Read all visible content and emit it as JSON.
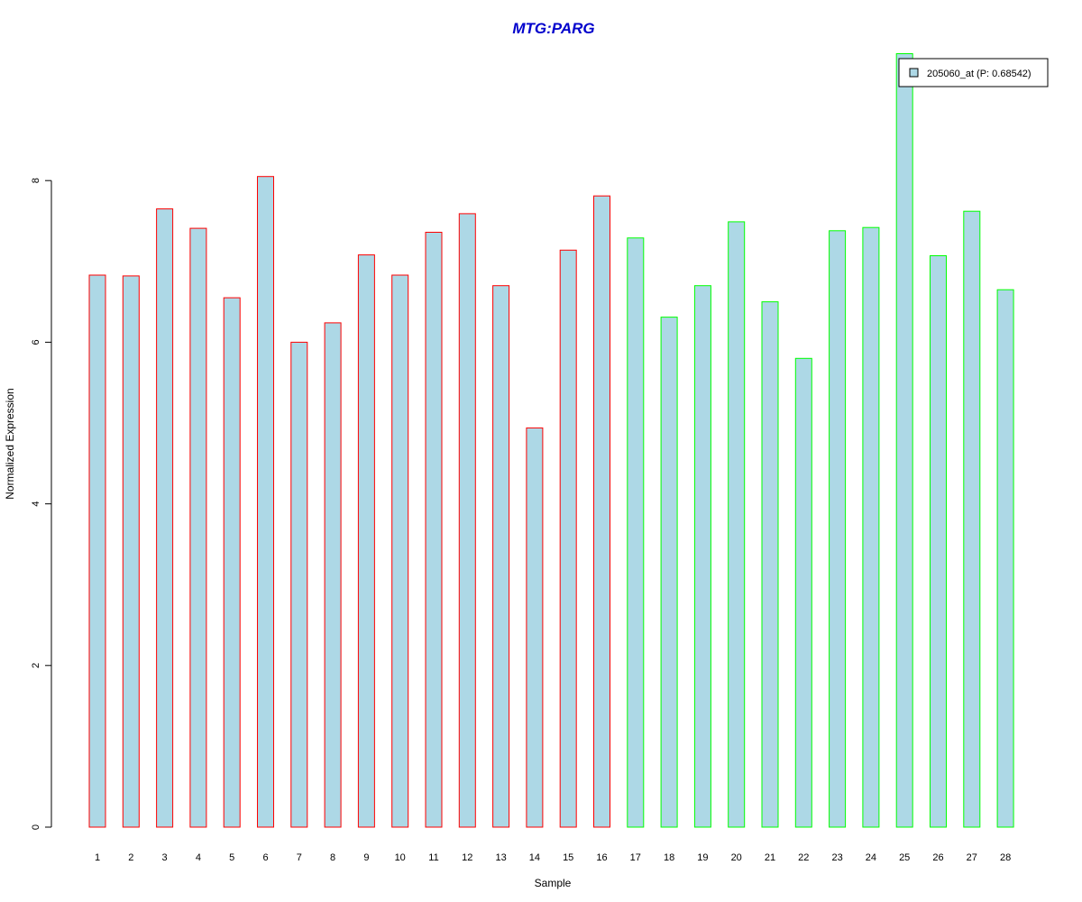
{
  "chart_data": {
    "type": "bar",
    "title": "MTG:PARG",
    "xlabel": "Sample",
    "ylabel": "Normalized Expression",
    "ylim": [
      0,
      9.6
    ],
    "y_ticks": [
      "0",
      "2",
      "4",
      "6",
      "8"
    ],
    "grid": false,
    "legend_position": "top-right",
    "categories": [
      "1",
      "2",
      "3",
      "4",
      "5",
      "6",
      "7",
      "8",
      "9",
      "10",
      "11",
      "12",
      "13",
      "14",
      "15",
      "16",
      "17",
      "18",
      "19",
      "20",
      "21",
      "22",
      "23",
      "24",
      "25",
      "26",
      "27",
      "28"
    ],
    "series": [
      {
        "name": "205060_at (P: 0.68542)",
        "values": [
          6.83,
          6.82,
          7.65,
          7.41,
          6.55,
          8.05,
          6.0,
          6.24,
          7.08,
          6.83,
          7.36,
          7.59,
          6.7,
          4.94,
          7.14,
          7.81,
          7.29,
          6.31,
          6.7,
          7.49,
          6.5,
          5.8,
          7.38,
          7.42,
          9.57,
          7.07,
          7.62,
          6.65
        ]
      }
    ],
    "groups": [
      "red",
      "red",
      "red",
      "red",
      "red",
      "red",
      "red",
      "red",
      "red",
      "red",
      "red",
      "red",
      "red",
      "red",
      "red",
      "red",
      "green",
      "green",
      "green",
      "green",
      "green",
      "green",
      "green",
      "green",
      "green",
      "green",
      "green",
      "green"
    ]
  },
  "colors": {
    "title": "#0000cc",
    "bar_fill": "#add8e6",
    "group_red": "#ff0000",
    "group_green": "#00ff00",
    "axis": "#000000"
  }
}
